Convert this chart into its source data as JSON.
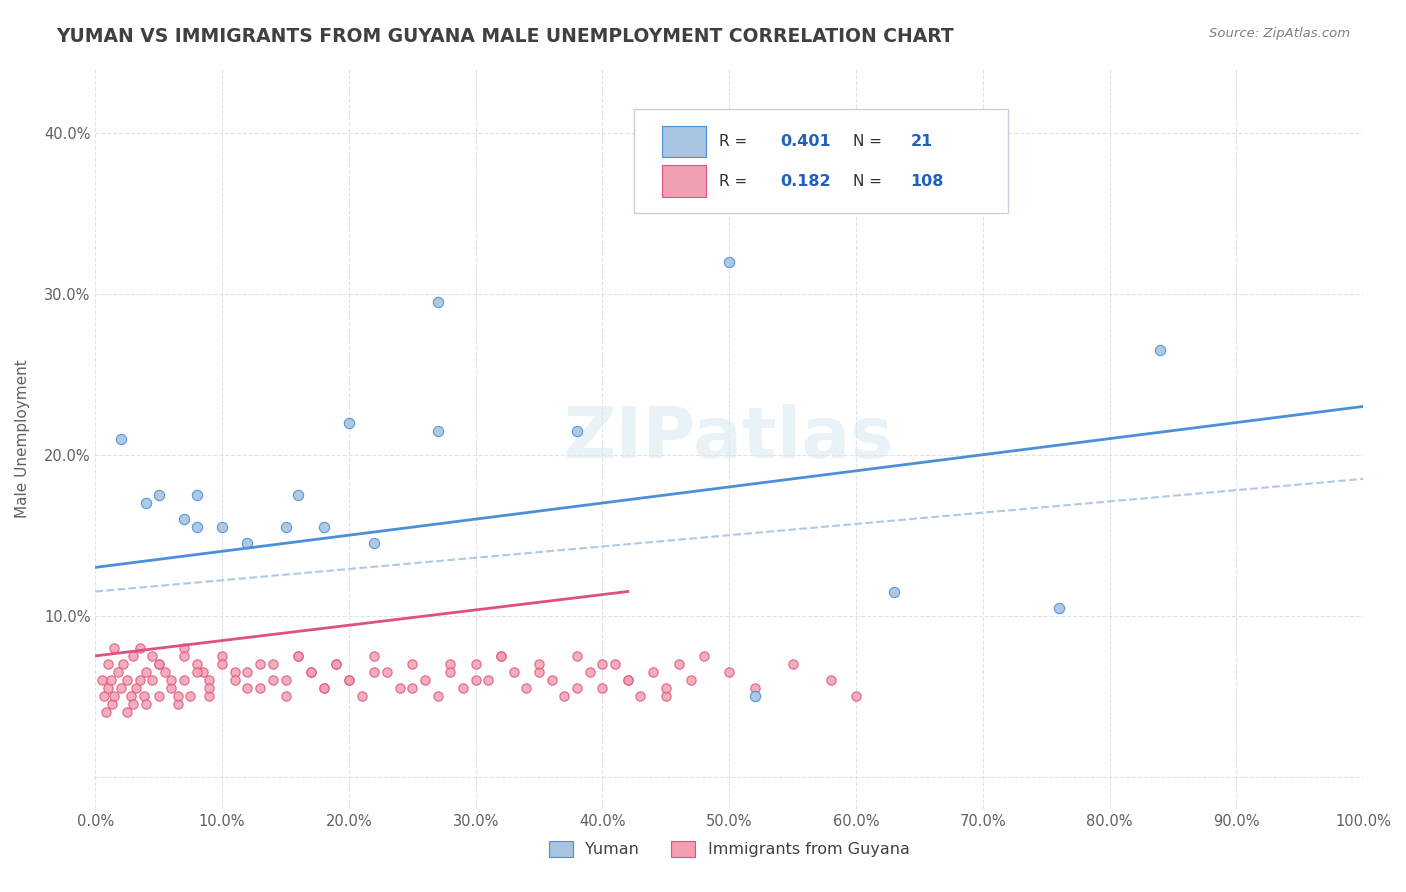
{
  "title": "YUMAN VS IMMIGRANTS FROM GUYANA MALE UNEMPLOYMENT CORRELATION CHART",
  "source": "Source: ZipAtlas.com",
  "xlabel_bottom": "",
  "ylabel": "Male Unemployment",
  "xlim": [
    0,
    1.0
  ],
  "ylim": [
    -0.02,
    0.44
  ],
  "xticks": [
    0.0,
    0.1,
    0.2,
    0.3,
    0.4,
    0.5,
    0.6,
    0.7,
    0.8,
    0.9,
    1.0
  ],
  "xticklabels": [
    "0.0%",
    "10.0%",
    "20.0%",
    "30.0%",
    "40.0%",
    "50.0%",
    "60.0%",
    "70.0%",
    "80.0%",
    "90.0%",
    "100.0%"
  ],
  "yticks": [
    0.0,
    0.1,
    0.2,
    0.3,
    0.4
  ],
  "yticklabels": [
    "",
    "10.0%",
    "20.0%",
    "30.0%",
    "40.0%"
  ],
  "legend_r1": "R = 0.401",
  "legend_n1": "N =  21",
  "legend_r2": "R = 0.182",
  "legend_n2": "N = 108",
  "color_blue": "#a8c4e0",
  "color_pink": "#f0a0b0",
  "line_blue": "#4a90d9",
  "line_pink": "#e05080",
  "line_dashed": "#b0c8e8",
  "watermark": "ZIPatlas",
  "title_color": "#404040",
  "legend_color": "#2060c0",
  "blue_scatter_x": [
    0.02,
    0.04,
    0.05,
    0.07,
    0.08,
    0.08,
    0.1,
    0.12,
    0.15,
    0.16,
    0.18,
    0.2,
    0.22,
    0.27,
    0.27,
    0.38,
    0.5,
    0.52,
    0.63,
    0.76,
    0.84
  ],
  "blue_scatter_y": [
    0.21,
    0.17,
    0.175,
    0.16,
    0.155,
    0.175,
    0.155,
    0.145,
    0.155,
    0.175,
    0.155,
    0.22,
    0.145,
    0.215,
    0.295,
    0.215,
    0.32,
    0.05,
    0.115,
    0.105,
    0.265
  ],
  "pink_scatter_x": [
    0.005,
    0.007,
    0.008,
    0.01,
    0.01,
    0.012,
    0.013,
    0.015,
    0.015,
    0.018,
    0.02,
    0.022,
    0.025,
    0.025,
    0.028,
    0.03,
    0.03,
    0.032,
    0.035,
    0.035,
    0.038,
    0.04,
    0.04,
    0.045,
    0.045,
    0.05,
    0.05,
    0.055,
    0.06,
    0.065,
    0.07,
    0.07,
    0.075,
    0.08,
    0.085,
    0.09,
    0.09,
    0.1,
    0.11,
    0.12,
    0.13,
    0.14,
    0.15,
    0.16,
    0.17,
    0.18,
    0.19,
    0.2,
    0.22,
    0.25,
    0.28,
    0.3,
    0.32,
    0.35,
    0.38,
    0.4,
    0.42,
    0.45,
    0.05,
    0.06,
    0.065,
    0.07,
    0.08,
    0.09,
    0.1,
    0.11,
    0.12,
    0.13,
    0.14,
    0.15,
    0.16,
    0.17,
    0.18,
    0.19,
    0.2,
    0.21,
    0.22,
    0.23,
    0.24,
    0.25,
    0.26,
    0.27,
    0.28,
    0.29,
    0.3,
    0.31,
    0.32,
    0.33,
    0.34,
    0.35,
    0.36,
    0.37,
    0.38,
    0.39,
    0.4,
    0.41,
    0.42,
    0.43,
    0.44,
    0.45,
    0.46,
    0.47,
    0.48,
    0.5,
    0.52,
    0.55,
    0.58,
    0.6
  ],
  "pink_scatter_y": [
    0.06,
    0.05,
    0.04,
    0.055,
    0.07,
    0.06,
    0.045,
    0.08,
    0.05,
    0.065,
    0.055,
    0.07,
    0.04,
    0.06,
    0.05,
    0.075,
    0.045,
    0.055,
    0.06,
    0.08,
    0.05,
    0.065,
    0.045,
    0.06,
    0.075,
    0.05,
    0.07,
    0.065,
    0.055,
    0.045,
    0.06,
    0.08,
    0.05,
    0.07,
    0.065,
    0.05,
    0.06,
    0.075,
    0.065,
    0.055,
    0.07,
    0.06,
    0.05,
    0.075,
    0.065,
    0.055,
    0.07,
    0.06,
    0.065,
    0.055,
    0.07,
    0.06,
    0.075,
    0.065,
    0.055,
    0.07,
    0.06,
    0.05,
    0.07,
    0.06,
    0.05,
    0.075,
    0.065,
    0.055,
    0.07,
    0.06,
    0.065,
    0.055,
    0.07,
    0.06,
    0.075,
    0.065,
    0.055,
    0.07,
    0.06,
    0.05,
    0.075,
    0.065,
    0.055,
    0.07,
    0.06,
    0.05,
    0.065,
    0.055,
    0.07,
    0.06,
    0.075,
    0.065,
    0.055,
    0.07,
    0.06,
    0.05,
    0.075,
    0.065,
    0.055,
    0.07,
    0.06,
    0.05,
    0.065,
    0.055,
    0.07,
    0.06,
    0.075,
    0.065,
    0.055,
    0.07,
    0.06,
    0.05
  ],
  "blue_line_x": [
    0.0,
    1.0
  ],
  "blue_line_y": [
    0.13,
    0.23
  ],
  "pink_line_x": [
    0.0,
    0.42
  ],
  "pink_line_y": [
    0.075,
    0.115
  ],
  "dashed_line_x": [
    0.0,
    1.0
  ],
  "dashed_line_y": [
    0.115,
    0.185
  ]
}
